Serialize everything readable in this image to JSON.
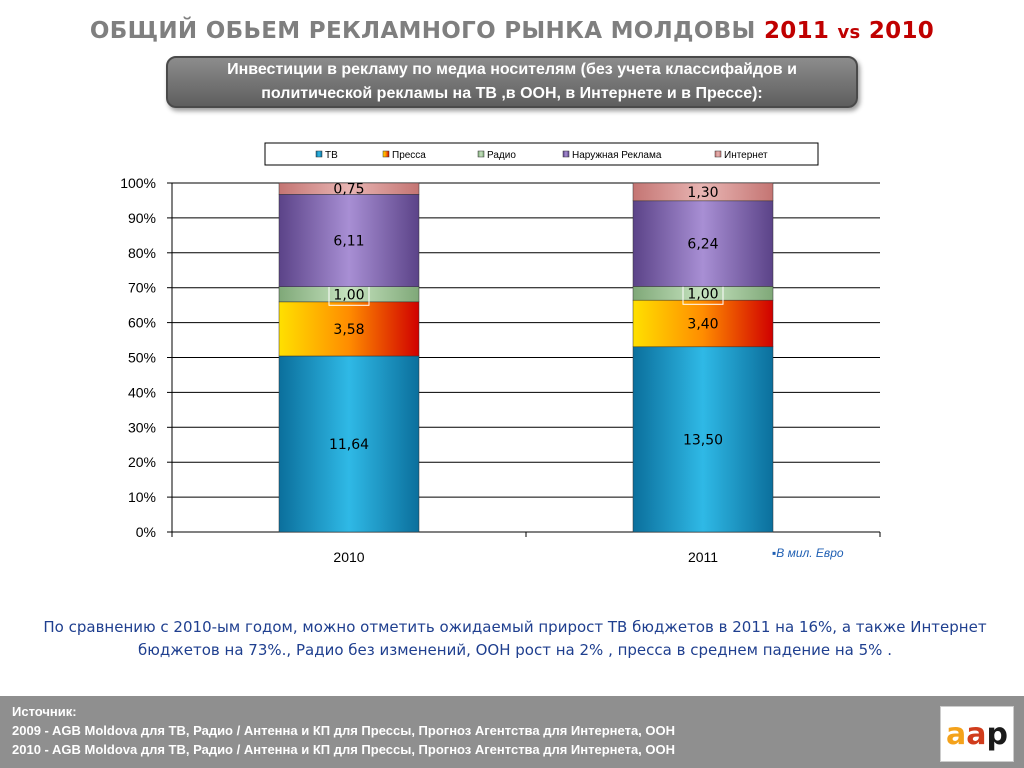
{
  "header": {
    "title_main": "ОБЩИЙ ОБЬЕМ РЕКЛАМНОГО РЫНКА МОЛДОВЫ",
    "title_year_a": "2011",
    "title_vs": "vs",
    "title_year_b": "2010",
    "subtitle": "Инвестиции в рекламу по медиа носителям (без учета классифайдов и политической рекламы на ТВ ,в ООН, в Интернете и в Прессе):"
  },
  "chart_data": {
    "type": "bar",
    "stacked": "percent",
    "categories": [
      "2010",
      "2011"
    ],
    "series": [
      {
        "name": "ТВ",
        "values": [
          11.64,
          13.5
        ],
        "labels": [
          "11,64",
          "13,50"
        ],
        "color": "#1ea6d6"
      },
      {
        "name": "Пресса",
        "values": [
          3.58,
          3.4
        ],
        "labels": [
          "3,58",
          "3,40"
        ],
        "color": "#ff9900"
      },
      {
        "name": "Радио",
        "values": [
          1.0,
          1.0
        ],
        "labels": [
          "1,00",
          "1,00"
        ],
        "color": "#a8cfa0"
      },
      {
        "name": "Наружная Реклама",
        "values": [
          6.11,
          6.24
        ],
        "labels": [
          "6,11",
          "6,24"
        ],
        "color": "#8064a2"
      },
      {
        "name": "Интернет",
        "values": [
          0.75,
          1.3
        ],
        "labels": [
          "0,75",
          "1,30"
        ],
        "color": "#d99594"
      }
    ],
    "y_ticks": [
      "0%",
      "10%",
      "20%",
      "30%",
      "40%",
      "50%",
      "60%",
      "70%",
      "80%",
      "90%",
      "100%"
    ],
    "ylim": [
      0,
      100
    ],
    "grid": true,
    "legend": "top"
  },
  "unit_note": "▪В мил. Евро",
  "conclusion": "По сравнению с 2010-ым годом, можно отметить ожидаемый прирост ТВ бюджетов в 2011 на 16%, а также Интернет бюджетов на 73%., Радио без изменений, ООН рост на 2% , пресса в среднем падение на 5% .",
  "footer": {
    "line1": "Источник:",
    "line2": "2009 - AGB Moldova для ТВ, Радио / Антенна и КП для Прессы, Прогноз Агентства для Интернета, ООН",
    "line3": "2010 - AGB Moldova для ТВ, Радио / Антенна и КП для Прессы, Прогноз Агентства для Интернета, ООН"
  },
  "logo": {
    "part1": "a",
    "part2": "a",
    "part3": "p"
  }
}
